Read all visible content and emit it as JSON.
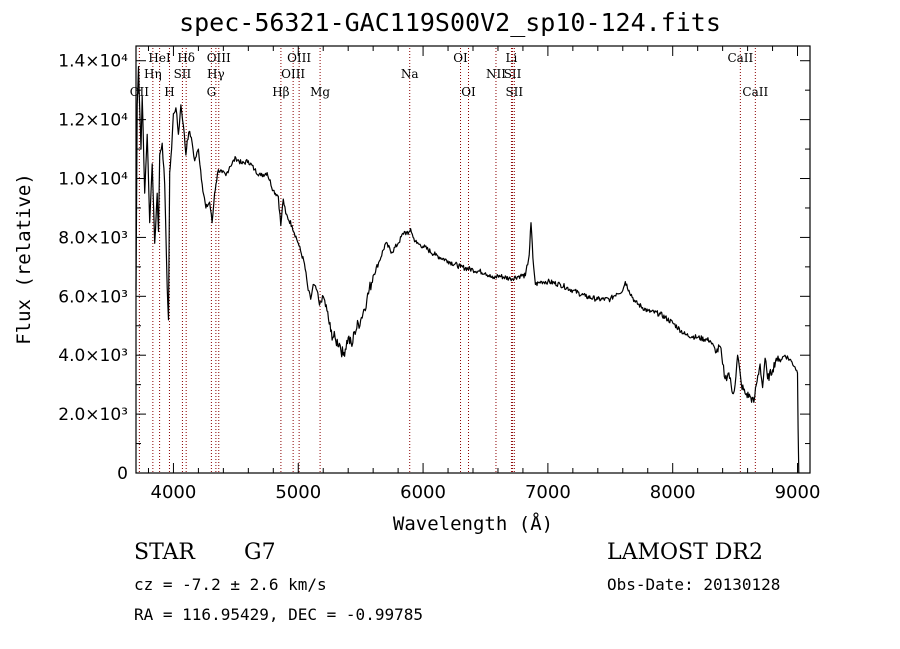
{
  "chart_data": {
    "type": "line",
    "title": "spec-56321-GAC119S00V2_sp10-124.fits",
    "xlabel": "Wavelength (Å)",
    "ylabel": "Flux (relative)",
    "xlim": [
      3700,
      9100
    ],
    "ylim": [
      0,
      14500
    ],
    "xticks": [
      4000,
      5000,
      6000,
      7000,
      8000,
      9000
    ],
    "yticks": [
      {
        "value": 0,
        "label": "0"
      },
      {
        "value": 2000,
        "label": "2.0×10³"
      },
      {
        "value": 4000,
        "label": "4.0×10³"
      },
      {
        "value": 6000,
        "label": "6.0×10³"
      },
      {
        "value": 8000,
        "label": "8.0×10³"
      },
      {
        "value": 10000,
        "label": "1.0×10⁴"
      },
      {
        "value": 12000,
        "label": "1.2×10⁴"
      },
      {
        "value": 14000,
        "label": "1.4×10⁴"
      }
    ],
    "grid": false,
    "line_color": "#000000",
    "marker_color": "#8b0000",
    "spectral_lines": [
      {
        "label": "OII",
        "x": 3727,
        "row": 3
      },
      {
        "label": "HeI",
        "x": 3889,
        "row": 1
      },
      {
        "label": "Hη",
        "x": 3835,
        "row": 2
      },
      {
        "label": "Hδ",
        "x": 4102,
        "row": 1
      },
      {
        "label": "H",
        "x": 3968,
        "row": 3
      },
      {
        "label": "SII",
        "x": 4072,
        "row": 2
      },
      {
        "label": "OIII",
        "x": 4363,
        "row": 1
      },
      {
        "label": "Hγ",
        "x": 4340,
        "row": 2
      },
      {
        "label": "G",
        "x": 4304,
        "row": 3
      },
      {
        "label": "OIII",
        "x": 5007,
        "row": 1
      },
      {
        "label": "OIII",
        "x": 4959,
        "row": 2
      },
      {
        "label": "Hβ",
        "x": 4861,
        "row": 3
      },
      {
        "label": "Mg",
        "x": 5175,
        "row": 3
      },
      {
        "label": "Na",
        "x": 5893,
        "row": 2
      },
      {
        "label": "OI",
        "x": 6300,
        "row": 1
      },
      {
        "label": "OI",
        "x": 6364,
        "row": 3
      },
      {
        "label": "NII",
        "x": 6584,
        "row": 2
      },
      {
        "label": "Li",
        "x": 6708,
        "row": 1
      },
      {
        "label": "SII",
        "x": 6717,
        "row": 2
      },
      {
        "label": "SII",
        "x": 6731,
        "row": 3
      },
      {
        "label": "CaII",
        "x": 8542,
        "row": 1
      },
      {
        "label": "CaII",
        "x": 8662,
        "row": 3
      }
    ],
    "series": [
      {
        "x": [
          3700,
          3710,
          3720,
          3740,
          3750,
          3770,
          3790,
          3810,
          3830,
          3850,
          3870,
          3880,
          3890,
          3910,
          3930,
          3950,
          3960,
          3970,
          3985,
          4000,
          4020,
          4040,
          4060,
          4080,
          4100,
          4110,
          4130,
          4150,
          4170,
          4200,
          4230,
          4260,
          4290,
          4310,
          4330,
          4340,
          4360,
          4390,
          4420,
          4450,
          4500,
          4550,
          4600,
          4650,
          4700,
          4750,
          4800,
          4840,
          4860,
          4880,
          4900,
          4950,
          5000,
          5050,
          5080,
          5100,
          5120,
          5150,
          5170,
          5200,
          5230,
          5260,
          5300,
          5330,
          5360,
          5400,
          5430,
          5450,
          5500,
          5550,
          5600,
          5650,
          5700,
          5750,
          5800,
          5850,
          5880,
          5900,
          5920,
          5950,
          6000,
          6100,
          6200,
          6300,
          6400,
          6500,
          6560,
          6600,
          6700,
          6780,
          6820,
          6850,
          6865,
          6880,
          6900,
          6950,
          7000,
          7100,
          7200,
          7300,
          7400,
          7500,
          7550,
          7600,
          7620,
          7650,
          7700,
          7800,
          7900,
          8000,
          8100,
          8200,
          8300,
          8350,
          8380,
          8400,
          8420,
          8450,
          8480,
          8500,
          8520,
          8550,
          8580,
          8620,
          8650,
          8670,
          8700,
          8720,
          8740,
          8760,
          8800,
          8830,
          8850,
          8900,
          8950,
          8980,
          9000,
          9005,
          9010
        ],
        "y": [
          6200,
          12500,
          13800,
          11000,
          12800,
          9500,
          11500,
          8500,
          10500,
          7800,
          9500,
          8200,
          10800,
          11200,
          9800,
          6300,
          5200,
          10200,
          11000,
          12200,
          12400,
          11500,
          12500,
          11800,
          10800,
          11300,
          11600,
          11200,
          10600,
          11000,
          9800,
          9000,
          9200,
          8500,
          9500,
          9800,
          10300,
          10200,
          10100,
          10400,
          10700,
          10500,
          10600,
          10300,
          10100,
          10200,
          9600,
          9400,
          8400,
          9300,
          8800,
          8400,
          7800,
          7100,
          6200,
          5900,
          6400,
          6200,
          5700,
          6000,
          5500,
          4800,
          4500,
          4400,
          4000,
          4600,
          4300,
          4800,
          5200,
          5900,
          6700,
          7200,
          7800,
          7500,
          7800,
          8200,
          8100,
          8300,
          8000,
          7800,
          7700,
          7400,
          7200,
          7000,
          6900,
          6800,
          6600,
          6700,
          6600,
          6700,
          6700,
          7400,
          8500,
          7300,
          6400,
          6500,
          6500,
          6400,
          6200,
          6000,
          5900,
          5900,
          6100,
          6200,
          6500,
          6200,
          5800,
          5500,
          5400,
          5100,
          4700,
          4600,
          4500,
          4100,
          4300,
          3700,
          3200,
          3400,
          2700,
          3000,
          4000,
          3000,
          2700,
          2600,
          2400,
          3000,
          3700,
          2900,
          3900,
          3200,
          3500,
          3900,
          3800,
          4000,
          3800,
          3600,
          3400,
          1500,
          0
        ]
      }
    ]
  },
  "footer": {
    "object_class": "STAR",
    "subclass": "G7",
    "survey": "LAMOST DR2",
    "cz": "cz = -7.2 ± 2.6 km/s",
    "obs_date": "Obs-Date: 20130128",
    "coords": "RA = 116.95429, DEC =  -0.99785"
  }
}
